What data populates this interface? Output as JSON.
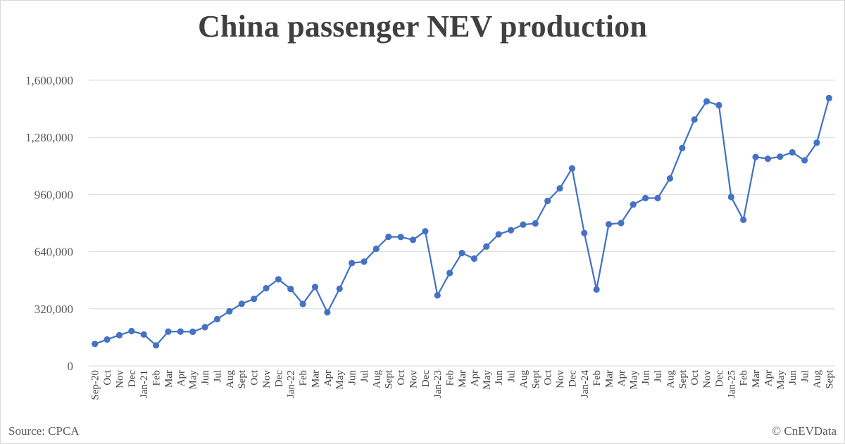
{
  "chart_data": {
    "type": "line",
    "title": "China passenger NEV production",
    "xlabel": "",
    "ylabel": "",
    "ylim": [
      0,
      1600000
    ],
    "yticks": [
      "0",
      "320,000",
      "640,000",
      "960,000",
      "1,280,000",
      "1,600,000"
    ],
    "grid": true,
    "legend": "none",
    "series_color": "#4472c4",
    "categories": [
      "Sep-20",
      "Oct",
      "Nov",
      "Dec",
      "Jan-21",
      "Feb",
      "Mar",
      "Apr",
      "May",
      "Jun",
      "Jul",
      "Aug",
      "Sept",
      "Oct",
      "Nov",
      "Dec",
      "Jan-22",
      "Feb",
      "Mar",
      "Apr",
      "May",
      "Jun",
      "Jul",
      "Aug",
      "Sept",
      "Oct",
      "Nov",
      "Dec",
      "Jan-23",
      "Feb",
      "Mar",
      "Apr",
      "May",
      "Jun",
      "Jul",
      "Aug",
      "Sept",
      "Oct",
      "Nov",
      "Dec",
      "Jan-24",
      "Feb",
      "Mar",
      "Apr",
      "May",
      "Jun",
      "Jul",
      "Aug",
      "Sept",
      "Oct",
      "Nov",
      "Dec",
      "Jan-25",
      "Feb",
      "Mar",
      "Apr",
      "May",
      "Jun",
      "Jul",
      "Aug",
      "Sept"
    ],
    "series": [
      {
        "values": [
          123000,
          148000,
          172000,
          195000,
          176000,
          115000,
          192000,
          192000,
          191000,
          217000,
          262000,
          306000,
          348000,
          375000,
          435000,
          485000,
          431000,
          347000,
          442000,
          300000,
          432000,
          576000,
          584000,
          656000,
          723000,
          722000,
          706000,
          754000,
          395000,
          520000,
          632000,
          601000,
          669000,
          737000,
          760000,
          791000,
          798000,
          924000,
          994000,
          1106000,
          744000,
          428000,
          793000,
          800000,
          904000,
          940000,
          940000,
          1050000,
          1220000,
          1380000,
          1482000,
          1460000,
          946000,
          818000,
          1170000,
          1160000,
          1172000,
          1196000,
          1151000,
          1250000,
          1500000
        ]
      }
    ]
  },
  "footer": {
    "source": "Source: CPCA",
    "credit": "© CnEVData"
  }
}
